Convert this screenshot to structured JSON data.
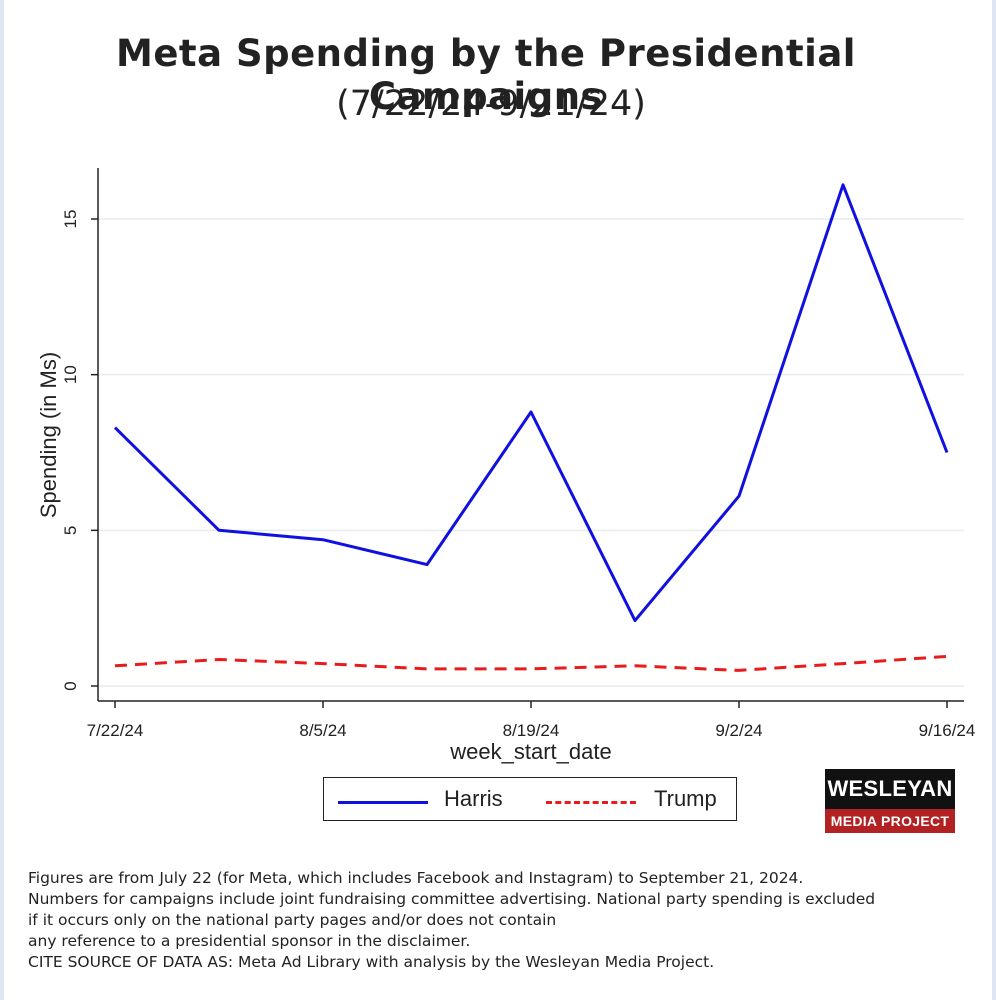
{
  "chart_data": {
    "type": "line",
    "title": "Meta Spending by the Presidential Campaigns",
    "subtitle": "(7/22/24-9/21/24)",
    "xlabel": "week_start_date",
    "ylabel": "Spending (in Ms)",
    "x": [
      "7/22/24",
      "7/29/24",
      "8/5/24",
      "8/12/24",
      "8/19/24",
      "8/26/24",
      "9/2/24",
      "9/9/24",
      "9/16/24"
    ],
    "x_ticks": [
      {
        "index": 0,
        "label": "7/22/24"
      },
      {
        "index": 2,
        "label": "8/5/24"
      },
      {
        "index": 4,
        "label": "8/19/24"
      },
      {
        "index": 6,
        "label": "9/2/24"
      },
      {
        "index": 8,
        "label": "9/16/24"
      }
    ],
    "y_ticks": [
      0,
      5,
      10,
      15
    ],
    "ylim": [
      -0.5,
      16.5
    ],
    "grid": true,
    "series": [
      {
        "name": "Harris",
        "color": "#1010e0",
        "style": "solid",
        "values": [
          8.3,
          5.0,
          4.7,
          3.9,
          8.8,
          2.1,
          6.1,
          16.1,
          7.5
        ]
      },
      {
        "name": "Trump",
        "color": "#e81c1c",
        "style": "dashed",
        "values": [
          0.65,
          0.85,
          0.72,
          0.55,
          0.55,
          0.65,
          0.5,
          0.72,
          0.95
        ]
      }
    ],
    "legend_position": "bottom"
  },
  "logo": {
    "line1": "WESLEYAN",
    "line2": "MEDIA PROJECT"
  },
  "footnote": {
    "lines": [
      "Figures are from July 22 (for Meta, which includes Facebook and Instagram) to September 21, 2024.",
      "Numbers for campaigns include joint fundraising committee advertising. National party spending is excluded",
      "if it occurs only on the national party pages and/or does not contain",
      "any reference to a presidential sponsor in the disclaimer.",
      "CITE SOURCE OF DATA AS: Meta Ad Library with analysis by the Wesleyan Media Project."
    ]
  }
}
